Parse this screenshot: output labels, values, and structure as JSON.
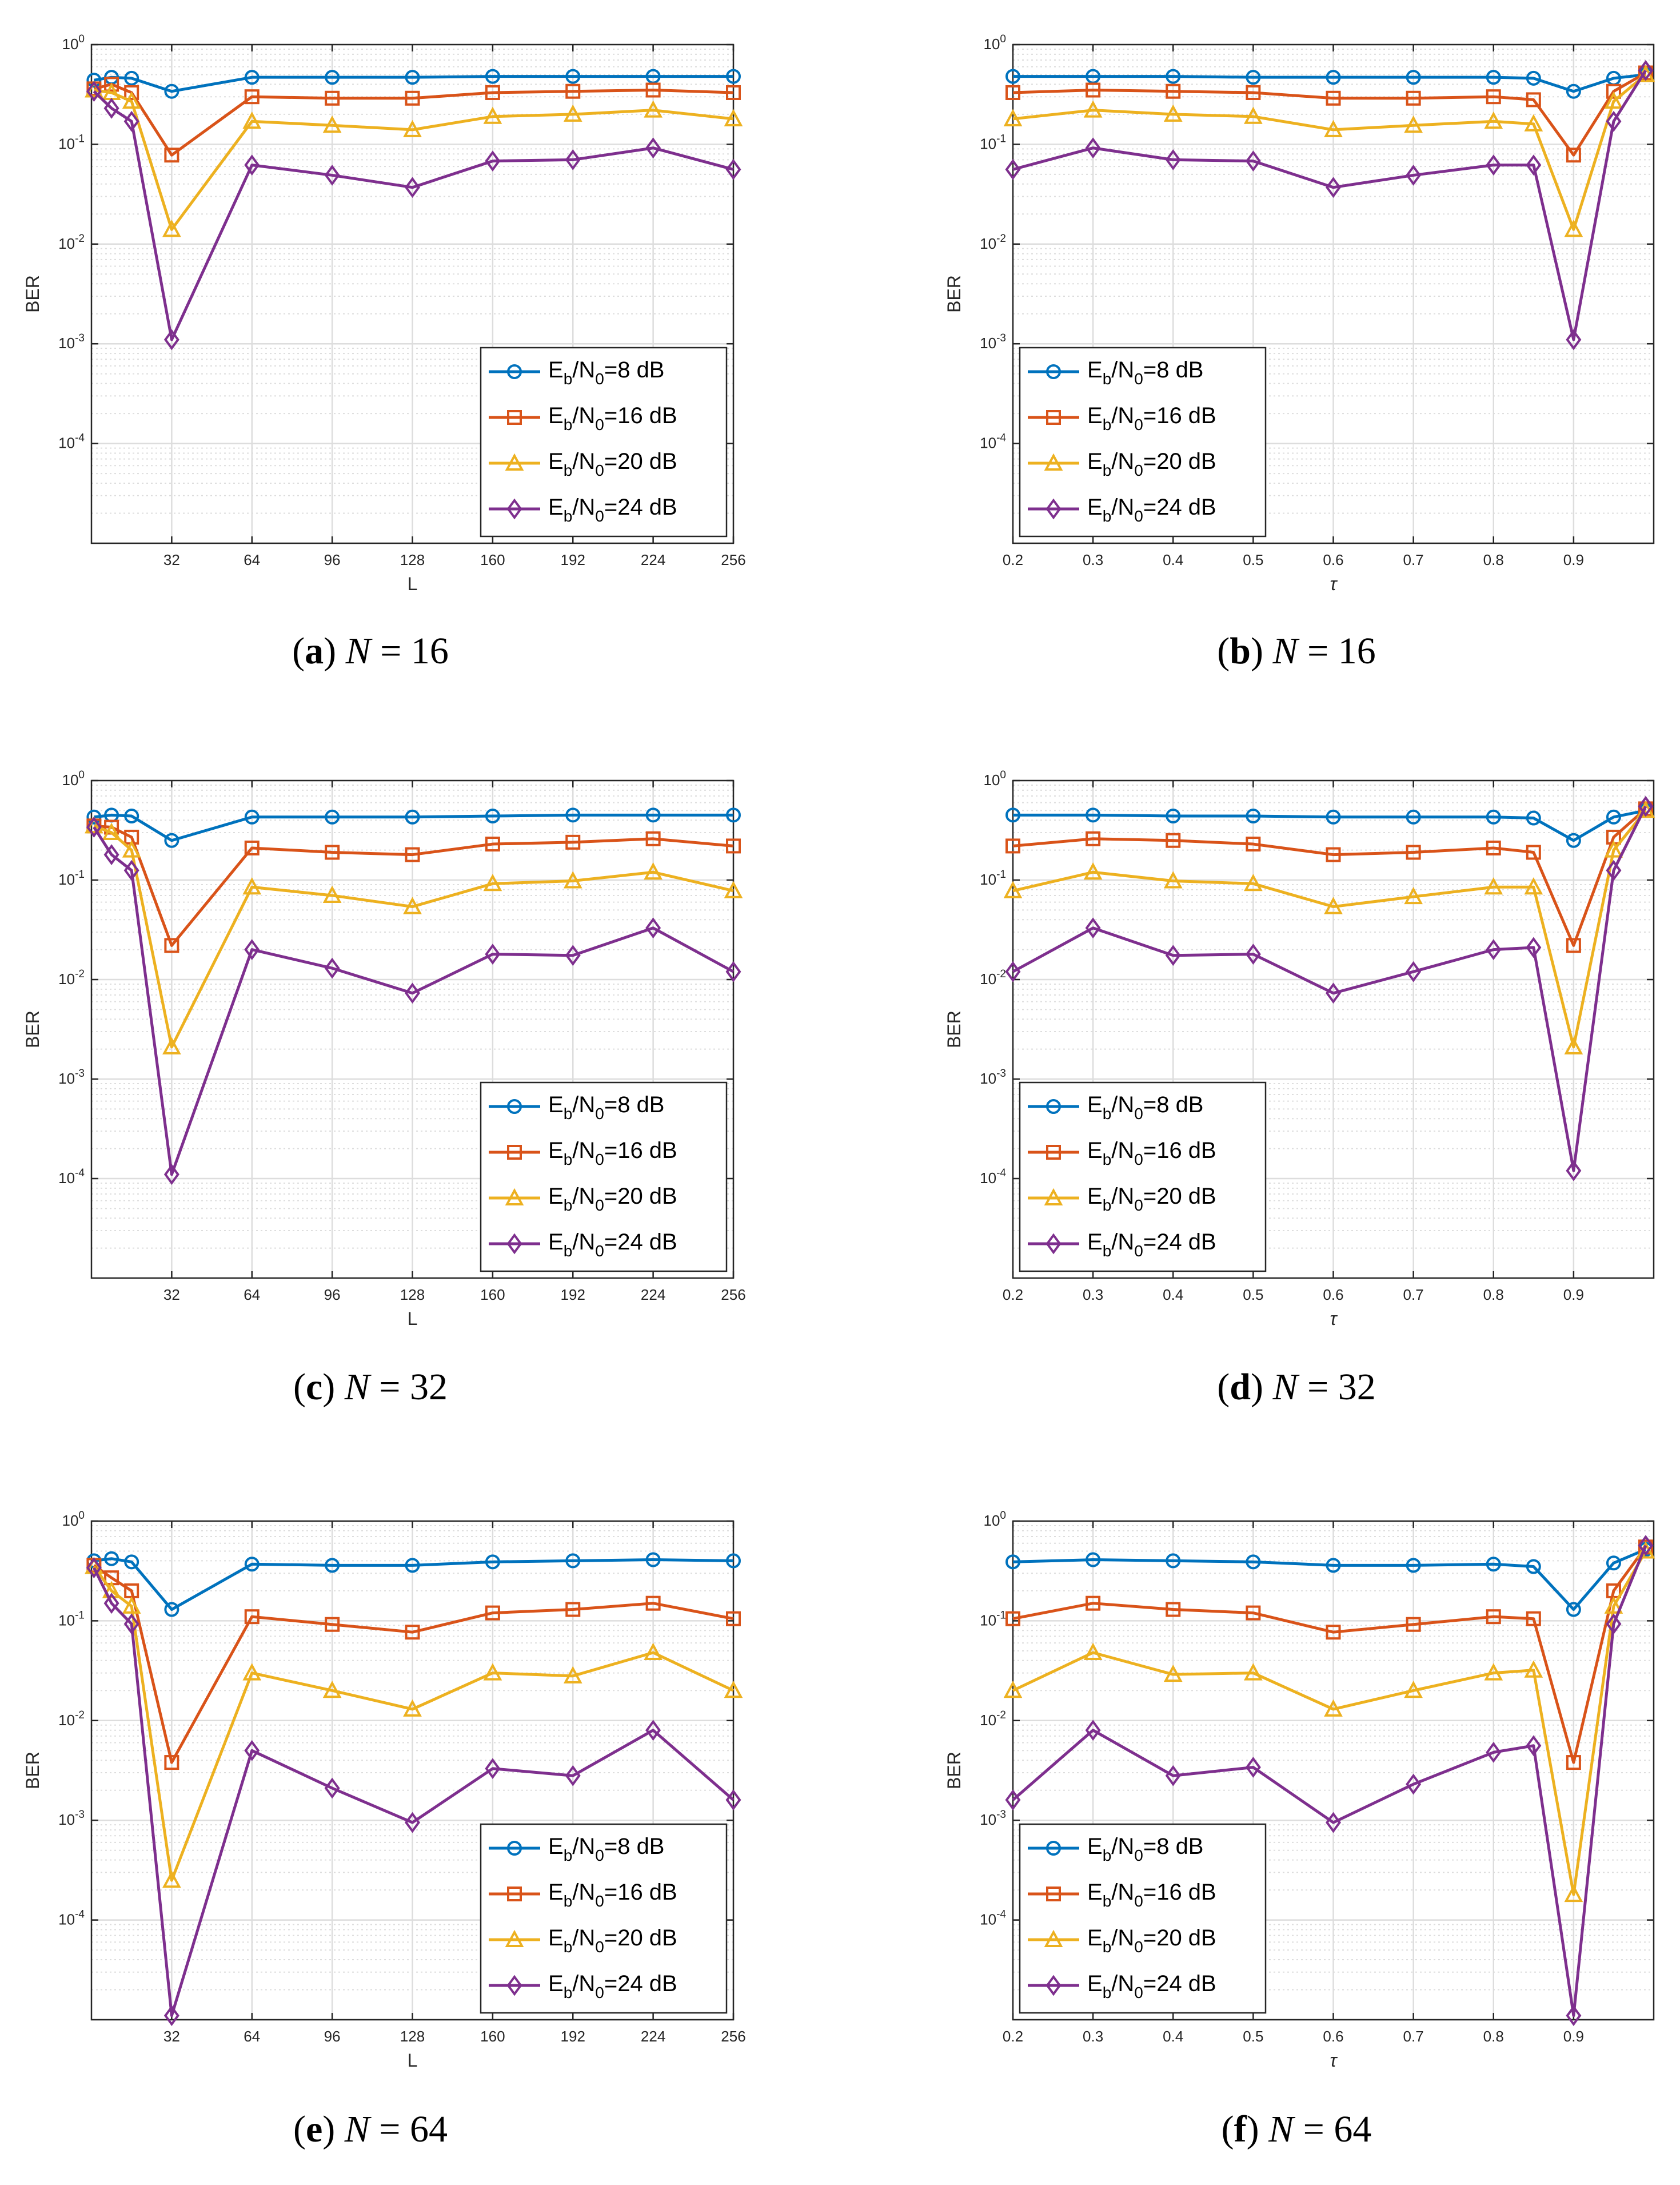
{
  "chart_data": [
    {
      "id": "a",
      "type": "line",
      "caption": {
        "letter": "a",
        "var": "N",
        "equals": " = ",
        "value": "16"
      },
      "xlabel": "L",
      "ylabel": "BER",
      "xscale": "linear",
      "yscale": "log",
      "xlim": [
        0,
        256
      ],
      "ylim": [
        1e-05,
        1
      ],
      "xticks": [
        32,
        64,
        96,
        128,
        160,
        192,
        224,
        256
      ],
      "xtick_labels": [
        "32",
        "64",
        "96",
        "128",
        "160",
        "192",
        "224",
        "256"
      ],
      "grid": true,
      "legend": "bottom-right",
      "x": [
        1,
        8,
        16,
        32,
        64,
        96,
        128,
        160,
        192,
        224,
        256
      ],
      "series": [
        {
          "name": "Eb/N0=8 dB",
          "values": [
            0.44,
            0.47,
            0.46,
            0.34,
            0.47,
            0.47,
            0.47,
            0.48,
            0.48,
            0.48,
            0.48
          ]
        },
        {
          "name": "Eb/N0=16 dB",
          "values": [
            0.36,
            0.4,
            0.33,
            0.078,
            0.3,
            0.29,
            0.29,
            0.33,
            0.34,
            0.35,
            0.33
          ]
        },
        {
          "name": "Eb/N0=20 dB",
          "values": [
            0.35,
            0.33,
            0.27,
            0.014,
            0.17,
            0.155,
            0.14,
            0.19,
            0.2,
            0.22,
            0.18
          ]
        },
        {
          "name": "Eb/N0=24 dB",
          "values": [
            0.34,
            0.23,
            0.17,
            0.0011,
            0.062,
            0.049,
            0.037,
            0.068,
            0.07,
            0.092,
            0.056
          ]
        }
      ]
    },
    {
      "id": "b",
      "type": "line",
      "caption": {
        "letter": "b",
        "var": "N",
        "equals": " = ",
        "value": "16"
      },
      "xlabel": "τ",
      "ylabel": "BER",
      "xscale": "linear",
      "yscale": "log",
      "xlim": [
        0.2,
        1.0
      ],
      "ylim": [
        1e-05,
        1
      ],
      "xticks": [
        0.2,
        0.3,
        0.4,
        0.5,
        0.6,
        0.7,
        0.8,
        0.9
      ],
      "xtick_labels": [
        "0.2",
        "0.3",
        "0.4",
        "0.5",
        "0.6",
        "0.7",
        "0.8",
        "0.9"
      ],
      "grid": true,
      "legend": "bottom-left",
      "x": [
        0.2,
        0.3,
        0.4,
        0.5,
        0.6,
        0.7,
        0.8,
        0.85,
        0.9,
        0.95,
        0.99
      ],
      "series": [
        {
          "name": "Eb/N0=8 dB",
          "values": [
            0.48,
            0.48,
            0.48,
            0.47,
            0.47,
            0.47,
            0.47,
            0.46,
            0.34,
            0.46,
            0.5
          ]
        },
        {
          "name": "Eb/N0=16 dB",
          "values": [
            0.33,
            0.35,
            0.34,
            0.33,
            0.29,
            0.29,
            0.3,
            0.28,
            0.078,
            0.34,
            0.52
          ]
        },
        {
          "name": "Eb/N0=20 dB",
          "values": [
            0.18,
            0.22,
            0.2,
            0.19,
            0.14,
            0.155,
            0.17,
            0.16,
            0.014,
            0.27,
            0.5
          ]
        },
        {
          "name": "Eb/N0=24 dB",
          "values": [
            0.056,
            0.092,
            0.07,
            0.068,
            0.037,
            0.049,
            0.062,
            0.062,
            0.0011,
            0.17,
            0.55
          ]
        }
      ]
    },
    {
      "id": "c",
      "type": "line",
      "caption": {
        "letter": "c",
        "var": "N",
        "equals": " = ",
        "value": "32"
      },
      "xlabel": "L",
      "ylabel": "BER",
      "xscale": "linear",
      "yscale": "log",
      "xlim": [
        0,
        256
      ],
      "ylim": [
        1e-05,
        1
      ],
      "xticks": [
        32,
        64,
        96,
        128,
        160,
        192,
        224,
        256
      ],
      "xtick_labels": [
        "32",
        "64",
        "96",
        "128",
        "160",
        "192",
        "224",
        "256"
      ],
      "grid": true,
      "legend": "bottom-right",
      "x": [
        1,
        8,
        16,
        32,
        64,
        96,
        128,
        160,
        192,
        224,
        256
      ],
      "series": [
        {
          "name": "Eb/N0=8 dB",
          "values": [
            0.43,
            0.45,
            0.44,
            0.25,
            0.43,
            0.43,
            0.43,
            0.44,
            0.45,
            0.45,
            0.45
          ]
        },
        {
          "name": "Eb/N0=16 dB",
          "values": [
            0.35,
            0.34,
            0.27,
            0.022,
            0.21,
            0.19,
            0.18,
            0.23,
            0.24,
            0.26,
            0.22
          ]
        },
        {
          "name": "Eb/N0=20 dB",
          "values": [
            0.35,
            0.3,
            0.2,
            0.0021,
            0.085,
            0.07,
            0.054,
            0.092,
            0.098,
            0.12,
            0.078
          ]
        },
        {
          "name": "Eb/N0=24 dB",
          "values": [
            0.34,
            0.18,
            0.125,
            0.00011,
            0.02,
            0.013,
            0.0073,
            0.018,
            0.0175,
            0.033,
            0.012
          ]
        }
      ]
    },
    {
      "id": "d",
      "type": "line",
      "caption": {
        "letter": "d",
        "var": "N",
        "equals": " = ",
        "value": "32"
      },
      "xlabel": "τ",
      "ylabel": "BER",
      "xscale": "linear",
      "yscale": "log",
      "xlim": [
        0.2,
        1.0
      ],
      "ylim": [
        1e-05,
        1
      ],
      "xticks": [
        0.2,
        0.3,
        0.4,
        0.5,
        0.6,
        0.7,
        0.8,
        0.9
      ],
      "xtick_labels": [
        "0.2",
        "0.3",
        "0.4",
        "0.5",
        "0.6",
        "0.7",
        "0.8",
        "0.9"
      ],
      "grid": true,
      "legend": "bottom-left",
      "x": [
        0.2,
        0.3,
        0.4,
        0.5,
        0.6,
        0.7,
        0.8,
        0.85,
        0.9,
        0.95,
        0.99
      ],
      "series": [
        {
          "name": "Eb/N0=8 dB",
          "values": [
            0.45,
            0.45,
            0.44,
            0.44,
            0.43,
            0.43,
            0.43,
            0.42,
            0.25,
            0.43,
            0.5
          ]
        },
        {
          "name": "Eb/N0=16 dB",
          "values": [
            0.22,
            0.26,
            0.25,
            0.23,
            0.18,
            0.19,
            0.21,
            0.19,
            0.022,
            0.27,
            0.52
          ]
        },
        {
          "name": "Eb/N0=20 dB",
          "values": [
            0.078,
            0.12,
            0.098,
            0.092,
            0.054,
            0.068,
            0.085,
            0.085,
            0.0021,
            0.2,
            0.5
          ]
        },
        {
          "name": "Eb/N0=24 dB",
          "values": [
            0.012,
            0.033,
            0.0175,
            0.018,
            0.0073,
            0.012,
            0.02,
            0.021,
            0.00012,
            0.125,
            0.55
          ]
        }
      ]
    },
    {
      "id": "e",
      "type": "line",
      "caption": {
        "letter": "e",
        "var": "N",
        "equals": " = ",
        "value": "64"
      },
      "xlabel": "L",
      "ylabel": "BER",
      "xscale": "linear",
      "yscale": "log",
      "xlim": [
        0,
        256
      ],
      "ylim": [
        1e-05,
        1
      ],
      "xticks": [
        32,
        64,
        96,
        128,
        160,
        192,
        224,
        256
      ],
      "xtick_labels": [
        "32",
        "64",
        "96",
        "128",
        "160",
        "192",
        "224",
        "256"
      ],
      "grid": true,
      "legend": "bottom-right",
      "x": [
        1,
        8,
        16,
        32,
        64,
        96,
        128,
        160,
        192,
        224,
        256
      ],
      "series": [
        {
          "name": "Eb/N0=8 dB",
          "values": [
            0.4,
            0.42,
            0.39,
            0.13,
            0.37,
            0.36,
            0.36,
            0.39,
            0.4,
            0.41,
            0.4
          ]
        },
        {
          "name": "Eb/N0=16 dB",
          "values": [
            0.36,
            0.27,
            0.2,
            0.0038,
            0.11,
            0.092,
            0.077,
            0.12,
            0.13,
            0.15,
            0.105
          ]
        },
        {
          "name": "Eb/N0=20 dB",
          "values": [
            0.35,
            0.2,
            0.14,
            0.00025,
            0.03,
            0.02,
            0.013,
            0.03,
            0.028,
            0.048,
            0.02
          ]
        },
        {
          "name": "Eb/N0=24 dB",
          "values": [
            0.34,
            0.15,
            0.093,
            1.1e-05,
            0.005,
            0.0021,
            0.00095,
            0.0033,
            0.0028,
            0.008,
            0.0016
          ]
        }
      ]
    },
    {
      "id": "f",
      "type": "line",
      "caption": {
        "letter": "f",
        "var": "N",
        "equals": " = ",
        "value": "64"
      },
      "xlabel": "τ",
      "ylabel": "BER",
      "xscale": "linear",
      "yscale": "log",
      "xlim": [
        0.2,
        1.0
      ],
      "ylim": [
        1e-05,
        1
      ],
      "xticks": [
        0.2,
        0.3,
        0.4,
        0.5,
        0.6,
        0.7,
        0.8,
        0.9
      ],
      "xtick_labels": [
        "0.2",
        "0.3",
        "0.4",
        "0.5",
        "0.6",
        "0.7",
        "0.8",
        "0.9"
      ],
      "grid": true,
      "legend": "bottom-left",
      "x": [
        0.2,
        0.3,
        0.4,
        0.5,
        0.6,
        0.7,
        0.8,
        0.85,
        0.9,
        0.95,
        0.99
      ],
      "series": [
        {
          "name": "Eb/N0=8 dB",
          "values": [
            0.39,
            0.41,
            0.4,
            0.39,
            0.36,
            0.36,
            0.37,
            0.35,
            0.13,
            0.38,
            0.52
          ]
        },
        {
          "name": "Eb/N0=16 dB",
          "values": [
            0.105,
            0.15,
            0.13,
            0.12,
            0.077,
            0.092,
            0.11,
            0.105,
            0.0038,
            0.2,
            0.55
          ]
        },
        {
          "name": "Eb/N0=20 dB",
          "values": [
            0.02,
            0.048,
            0.029,
            0.03,
            0.013,
            0.02,
            0.03,
            0.032,
            0.00018,
            0.14,
            0.5
          ]
        },
        {
          "name": "Eb/N0=24 dB",
          "values": [
            0.0016,
            0.008,
            0.0028,
            0.0034,
            0.00095,
            0.0023,
            0.0048,
            0.0056,
            1.1e-05,
            0.093,
            0.57
          ]
        }
      ]
    }
  ],
  "legend_entries": [
    {
      "base": "E",
      "sub1": "b",
      "mid": "/N",
      "sub2": "0",
      "rest": "=8 dB"
    },
    {
      "base": "E",
      "sub1": "b",
      "mid": "/N",
      "sub2": "0",
      "rest": "=16 dB"
    },
    {
      "base": "E",
      "sub1": "b",
      "mid": "/N",
      "sub2": "0",
      "rest": "=20 dB"
    },
    {
      "base": "E",
      "sub1": "b",
      "mid": "/N",
      "sub2": "0",
      "rest": "=24 dB"
    }
  ],
  "y_tick_labels": [
    {
      "base": "10",
      "exp": "0",
      "value": 1
    },
    {
      "base": "10",
      "exp": "-1",
      "value": 0.1
    },
    {
      "base": "10",
      "exp": "-2",
      "value": 0.01
    },
    {
      "base": "10",
      "exp": "-3",
      "value": 0.001
    },
    {
      "base": "10",
      "exp": "-4",
      "value": 0.0001
    }
  ],
  "colors": {
    "series": [
      "#0072BD",
      "#D95319",
      "#EDB120",
      "#7E2F8E"
    ],
    "grid": "#DDDDDD",
    "axis": "#262626"
  },
  "markers": [
    "circle",
    "square",
    "triangle",
    "diamond"
  ]
}
